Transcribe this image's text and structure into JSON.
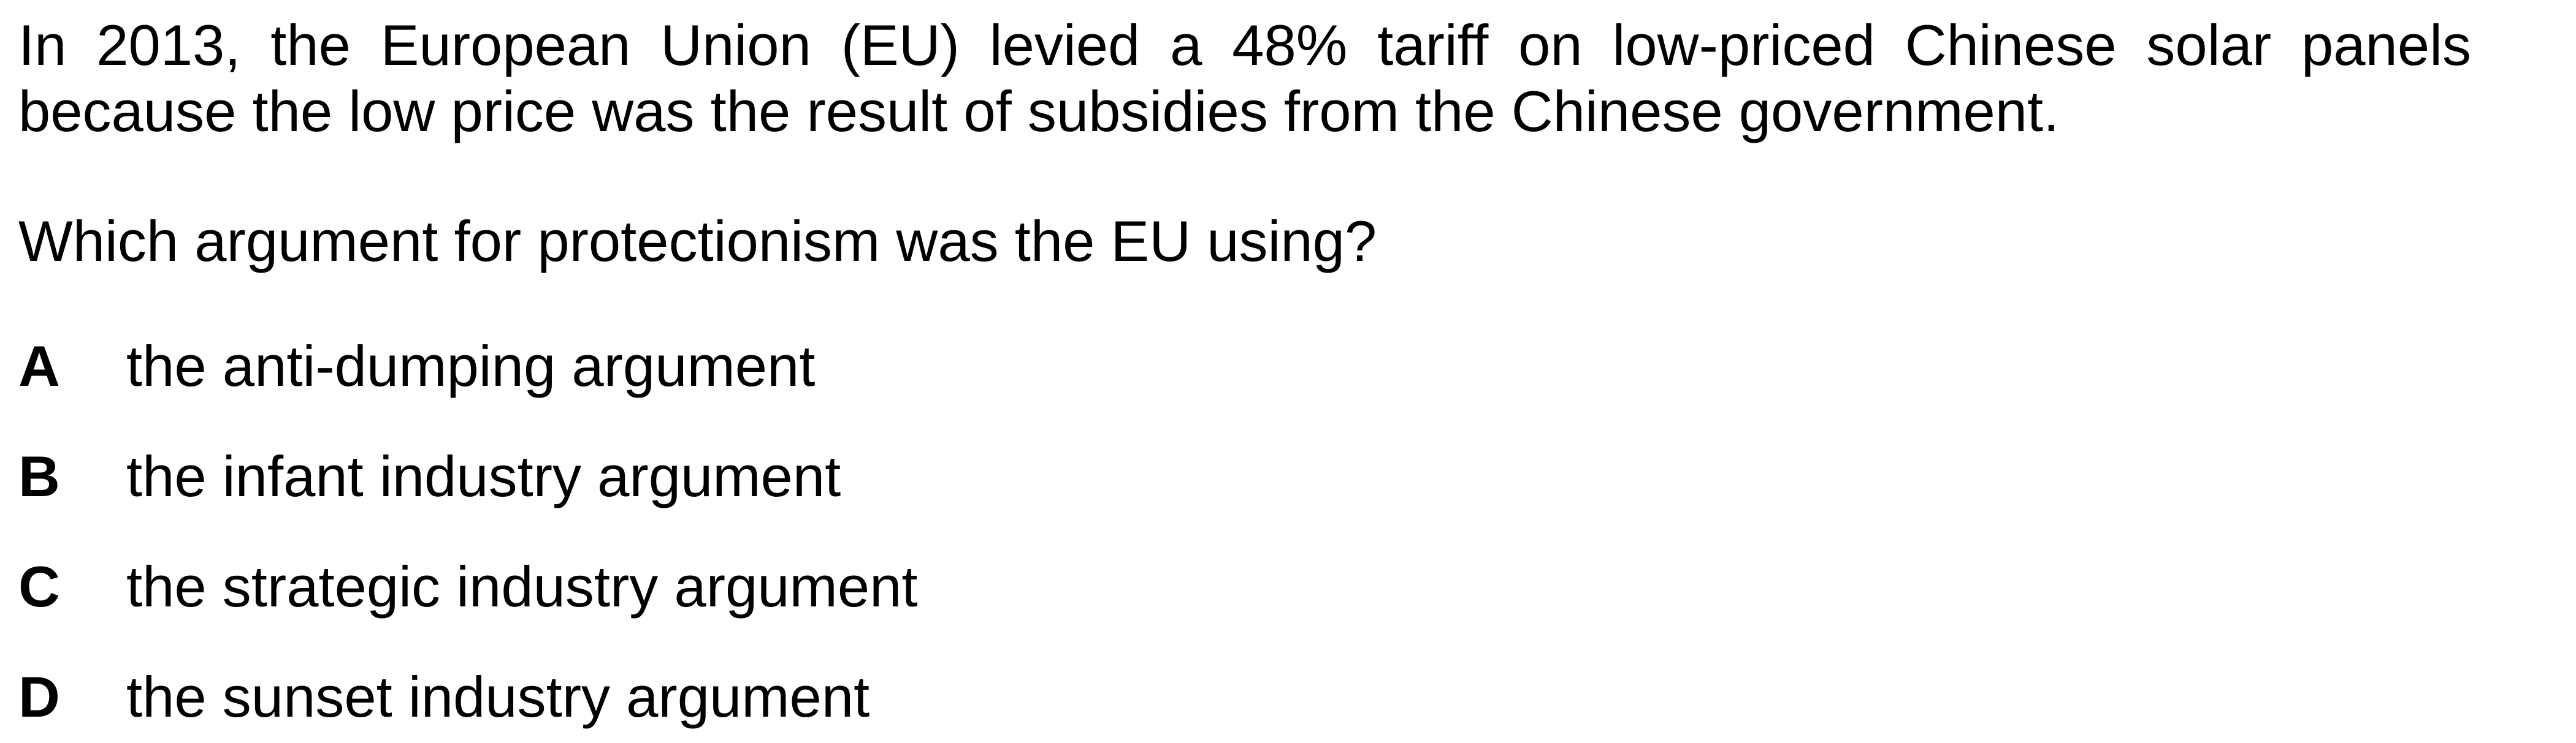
{
  "question": {
    "stem": "In 2013, the European Union (EU) levied a 48% tariff on low-priced Chinese solar panels because the low price was the result of subsidies from the Chinese government.",
    "prompt": "Which argument for protectionism was the EU using?"
  },
  "options": [
    {
      "letter": "A",
      "text": "the anti-dumping argument"
    },
    {
      "letter": "B",
      "text": "the infant industry argument"
    },
    {
      "letter": "C",
      "text": "the strategic industry argument"
    },
    {
      "letter": "D",
      "text": "the sunset industry argument"
    }
  ]
}
